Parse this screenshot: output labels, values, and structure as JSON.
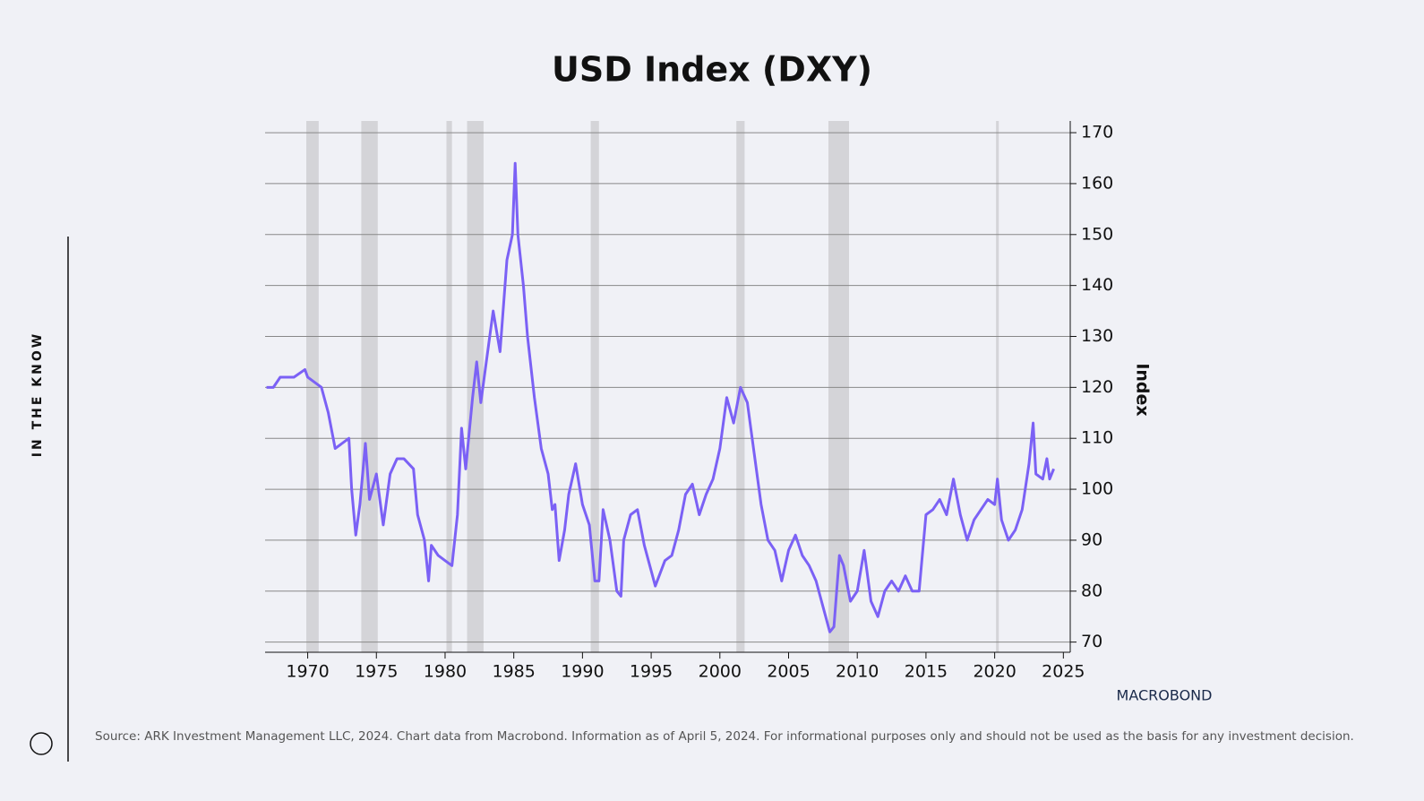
{
  "side_label": "IN THE KNOW",
  "logo": "MACROBOND",
  "source": "Source: ARK Investment Management LLC, 2024. Chart data from Macrobond. Information as of April 5, 2024. For informational purposes only and should not be used as the basis for any investment decision.",
  "chart_data": {
    "type": "line",
    "title": "USD Index (DXY)",
    "y_label": "Index",
    "xlim": [
      1966.9,
      2025.5
    ],
    "xticks": [
      1970,
      1975,
      1980,
      1985,
      1990,
      1995,
      2000,
      2005,
      2010,
      2015,
      2020,
      2025
    ],
    "ylim": [
      68,
      172.3
    ],
    "yticks": [
      70,
      80,
      90,
      100,
      110,
      120,
      130,
      140,
      150,
      160,
      170
    ],
    "grid": true,
    "recessions": [
      [
        1969.9,
        1970.8
      ],
      [
        1973.9,
        1975.1
      ],
      [
        1980.1,
        1980.5
      ],
      [
        1981.6,
        1982.8
      ],
      [
        1990.6,
        1991.2
      ],
      [
        2001.2,
        2001.8
      ],
      [
        2007.9,
        2009.4
      ],
      [
        2020.1,
        2020.3
      ]
    ],
    "recession_color": "#d4d4d8",
    "x": [
      1967,
      1967.5,
      1968,
      1969,
      1969.8,
      1970,
      1971,
      1971.5,
      1972,
      1973,
      1973.2,
      1973.5,
      1973.8,
      1974.2,
      1974.5,
      1975,
      1975.5,
      1976,
      1976.5,
      1977,
      1977.7,
      1978,
      1978.5,
      1978.8,
      1979,
      1979.5,
      1980,
      1980.5,
      1980.9,
      1981.2,
      1981.5,
      1982,
      1982.3,
      1982.6,
      1983,
      1983.5,
      1984,
      1984.5,
      1984.9,
      1985.1,
      1985.3,
      1985.7,
      1986,
      1986.5,
      1987,
      1987.5,
      1987.8,
      1988,
      1988.3,
      1988.7,
      1989,
      1989.5,
      1990,
      1990.5,
      1990.9,
      1991.2,
      1991.5,
      1992,
      1992.5,
      1992.8,
      1993,
      1993.5,
      1994,
      1994.5,
      1995,
      1995.3,
      1996,
      1996.5,
      1997,
      1997.5,
      1998,
      1998.5,
      1999,
      1999.5,
      2000,
      2000.5,
      2001,
      2001.5,
      2002,
      2002.5,
      2003,
      2003.5,
      2004,
      2004.5,
      2005,
      2005.5,
      2006,
      2006.5,
      2007,
      2007.5,
      2008,
      2008.3,
      2008.7,
      2009,
      2009.5,
      2010,
      2010.5,
      2011,
      2011.5,
      2012,
      2012.5,
      2013,
      2013.5,
      2014,
      2014.5,
      2015,
      2015.5,
      2016,
      2016.5,
      2017,
      2017.5,
      2018,
      2018.5,
      2019,
      2019.5,
      2020,
      2020.2,
      2020.5,
      2021,
      2021.5,
      2022,
      2022.5,
      2022.8,
      2023,
      2023.5,
      2023.8,
      2024,
      2024.3
    ],
    "series": [
      {
        "name": "DXY",
        "color": "#7b61f5",
        "values": [
          120,
          120,
          122,
          122,
          123.5,
          122,
          120,
          115,
          108,
          110,
          100,
          91,
          97,
          109,
          98,
          103,
          93,
          103,
          106,
          106,
          104,
          95,
          90,
          82,
          89,
          87,
          86,
          85,
          95,
          112,
          104,
          118,
          125,
          117,
          125,
          135,
          127,
          145,
          150,
          164,
          150,
          140,
          130,
          118,
          108,
          103,
          96,
          97,
          86,
          92,
          99,
          105,
          97,
          93,
          82,
          82,
          96,
          90,
          80,
          79,
          90,
          95,
          96,
          89,
          84,
          81,
          86,
          87,
          92,
          99,
          101,
          95,
          99,
          102,
          108,
          118,
          113,
          120,
          117,
          107,
          97,
          90,
          88,
          82,
          88,
          91,
          87,
          85,
          82,
          77,
          72,
          73,
          87,
          85,
          78,
          80,
          88,
          78,
          75,
          80,
          82,
          80,
          83,
          80,
          80,
          95,
          96,
          98,
          95,
          102,
          95,
          90,
          94,
          96,
          98,
          97,
          102,
          94,
          90,
          92,
          96,
          105,
          113,
          103,
          102,
          106,
          102,
          104
        ]
      }
    ]
  }
}
